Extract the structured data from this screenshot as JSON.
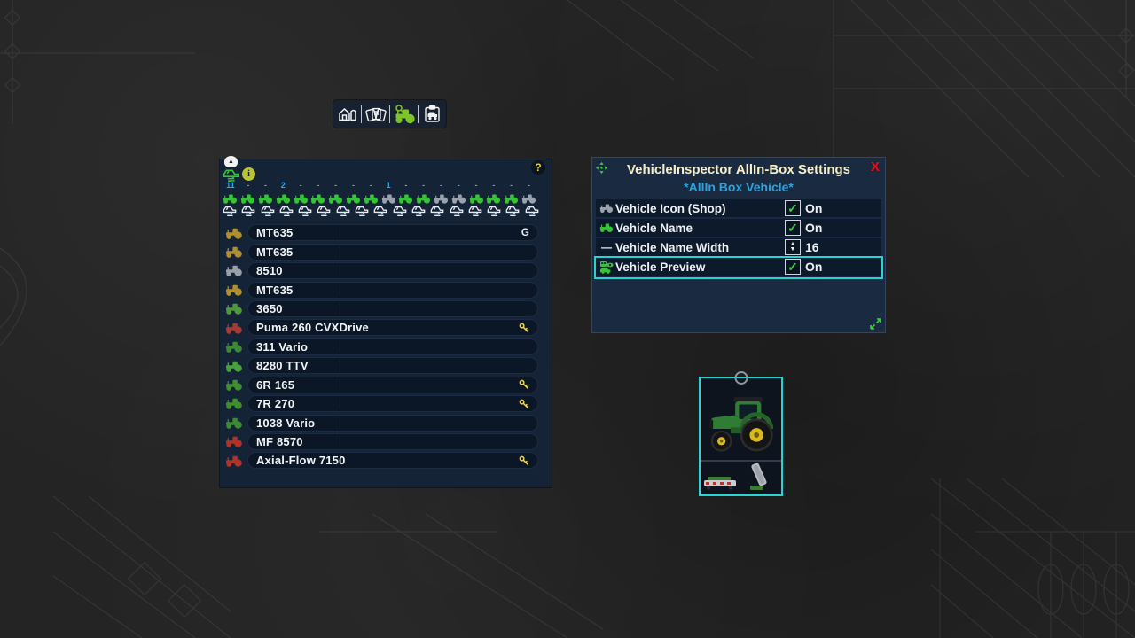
{
  "toolbar": {
    "icons": [
      {
        "name": "farm-icon"
      },
      {
        "name": "cards-icon"
      },
      {
        "name": "vehicle-inspector-icon"
      },
      {
        "name": "vehicle-clipboard-icon"
      }
    ]
  },
  "icons_glyphs": {
    "collapse": "▲",
    "info": "i",
    "help": "?",
    "check": "✓",
    "stepper_up": "▲",
    "stepper_down": "▼",
    "minus": "—"
  },
  "left_panel": {
    "categories": [
      {
        "count": "11",
        "state": "green"
      },
      {
        "count": "-",
        "state": "green"
      },
      {
        "count": "-",
        "state": "green"
      },
      {
        "count": "2",
        "state": "green"
      },
      {
        "count": "-",
        "state": "green"
      },
      {
        "count": "-",
        "state": "green"
      },
      {
        "count": "-",
        "state": "green"
      },
      {
        "count": "-",
        "state": "green"
      },
      {
        "count": "-",
        "state": "green"
      },
      {
        "count": "1",
        "state": "gray"
      },
      {
        "count": "-",
        "state": "green"
      },
      {
        "count": "-",
        "state": "green"
      },
      {
        "count": "-",
        "state": "gray"
      },
      {
        "count": "-",
        "state": "gray"
      },
      {
        "count": "-",
        "state": "green"
      },
      {
        "count": "-",
        "state": "green"
      },
      {
        "count": "-",
        "state": "green"
      },
      {
        "count": "-",
        "state": "gray"
      }
    ],
    "swap_icon_count": 17,
    "vehicles": [
      {
        "name": "MT635",
        "icon_color": "#b08f2e",
        "badge": "G",
        "key": false
      },
      {
        "name": "MT635",
        "icon_color": "#b08f2e",
        "badge": "",
        "key": false
      },
      {
        "name": "8510",
        "icon_color": "#9aa0a6",
        "badge": "",
        "key": false
      },
      {
        "name": "MT635",
        "icon_color": "#b08f2e",
        "badge": "",
        "key": false
      },
      {
        "name": "3650",
        "icon_color": "#4e9a3a",
        "badge": "",
        "key": false
      },
      {
        "name": "Puma 260 CVXDrive",
        "icon_color": "#a83a32",
        "badge": "",
        "key": true
      },
      {
        "name": "311 Vario",
        "icon_color": "#3c8a34",
        "badge": "",
        "key": false
      },
      {
        "name": "8280 TTV",
        "icon_color": "#49a23c",
        "badge": "",
        "key": false
      },
      {
        "name": "6R 165",
        "icon_color": "#3f8f2f",
        "badge": "",
        "key": true
      },
      {
        "name": "7R 270",
        "icon_color": "#3f8f2f",
        "badge": "",
        "key": true
      },
      {
        "name": "1038 Vario",
        "icon_color": "#3c8a34",
        "badge": "",
        "key": false
      },
      {
        "name": "MF 8570",
        "icon_color": "#b33226",
        "badge": "",
        "key": false
      },
      {
        "name": "Axial-Flow 7150",
        "icon_color": "#b33226",
        "badge": "",
        "key": true
      }
    ]
  },
  "settings": {
    "title": "VehicleInspector AllIn-Box Settings",
    "subtitle": "*AllIn Box Vehicle*",
    "close_label": "X",
    "rows": [
      {
        "label": "Vehicle Icon (Shop)",
        "icon": "shop-vehicle-icon",
        "icon_color": "#9aa3ad",
        "control": "checkbox",
        "value": "On",
        "selected": false
      },
      {
        "label": "Vehicle Name",
        "icon": "tractor-icon",
        "icon_color": "#35c435",
        "control": "checkbox",
        "value": "On",
        "selected": false
      },
      {
        "label": "Vehicle Name Width",
        "icon": "minus-icon",
        "icon_color": "#f0f0f0",
        "control": "stepper",
        "value": "16",
        "selected": false
      },
      {
        "label": "Vehicle Preview",
        "icon": "preview-icon",
        "icon_color": "#35c435",
        "control": "checkbox",
        "value": "On",
        "selected": true
      }
    ]
  },
  "colors": {
    "accent_green": "#35c435",
    "highlight_cyan": "#27d3d3",
    "title_cream": "#f6efc8",
    "subtitle_blue": "#2ba3dd",
    "count_blue": "#2fa7e8",
    "key_yellow": "#e8d44d",
    "close_red": "#e01414"
  }
}
